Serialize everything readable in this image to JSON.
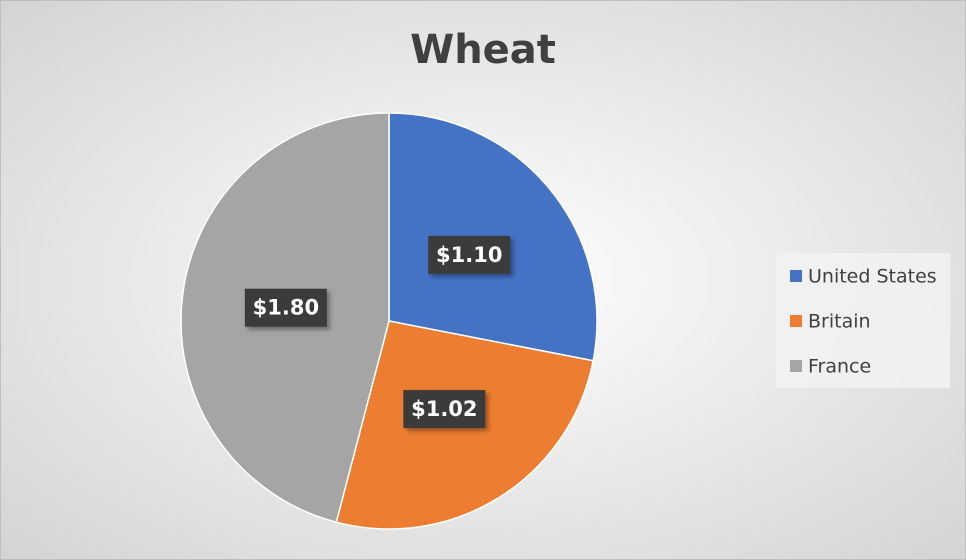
{
  "chart_data": {
    "type": "pie",
    "title": "Wheat",
    "categories": [
      "United States",
      "Britain",
      "France"
    ],
    "values": [
      1.1,
      1.02,
      1.8
    ],
    "value_labels": [
      "$1.10",
      "$1.02",
      "$1.80"
    ],
    "colors": [
      "#4472c4",
      "#ed7d31",
      "#a5a5a5"
    ],
    "legend": "right"
  }
}
